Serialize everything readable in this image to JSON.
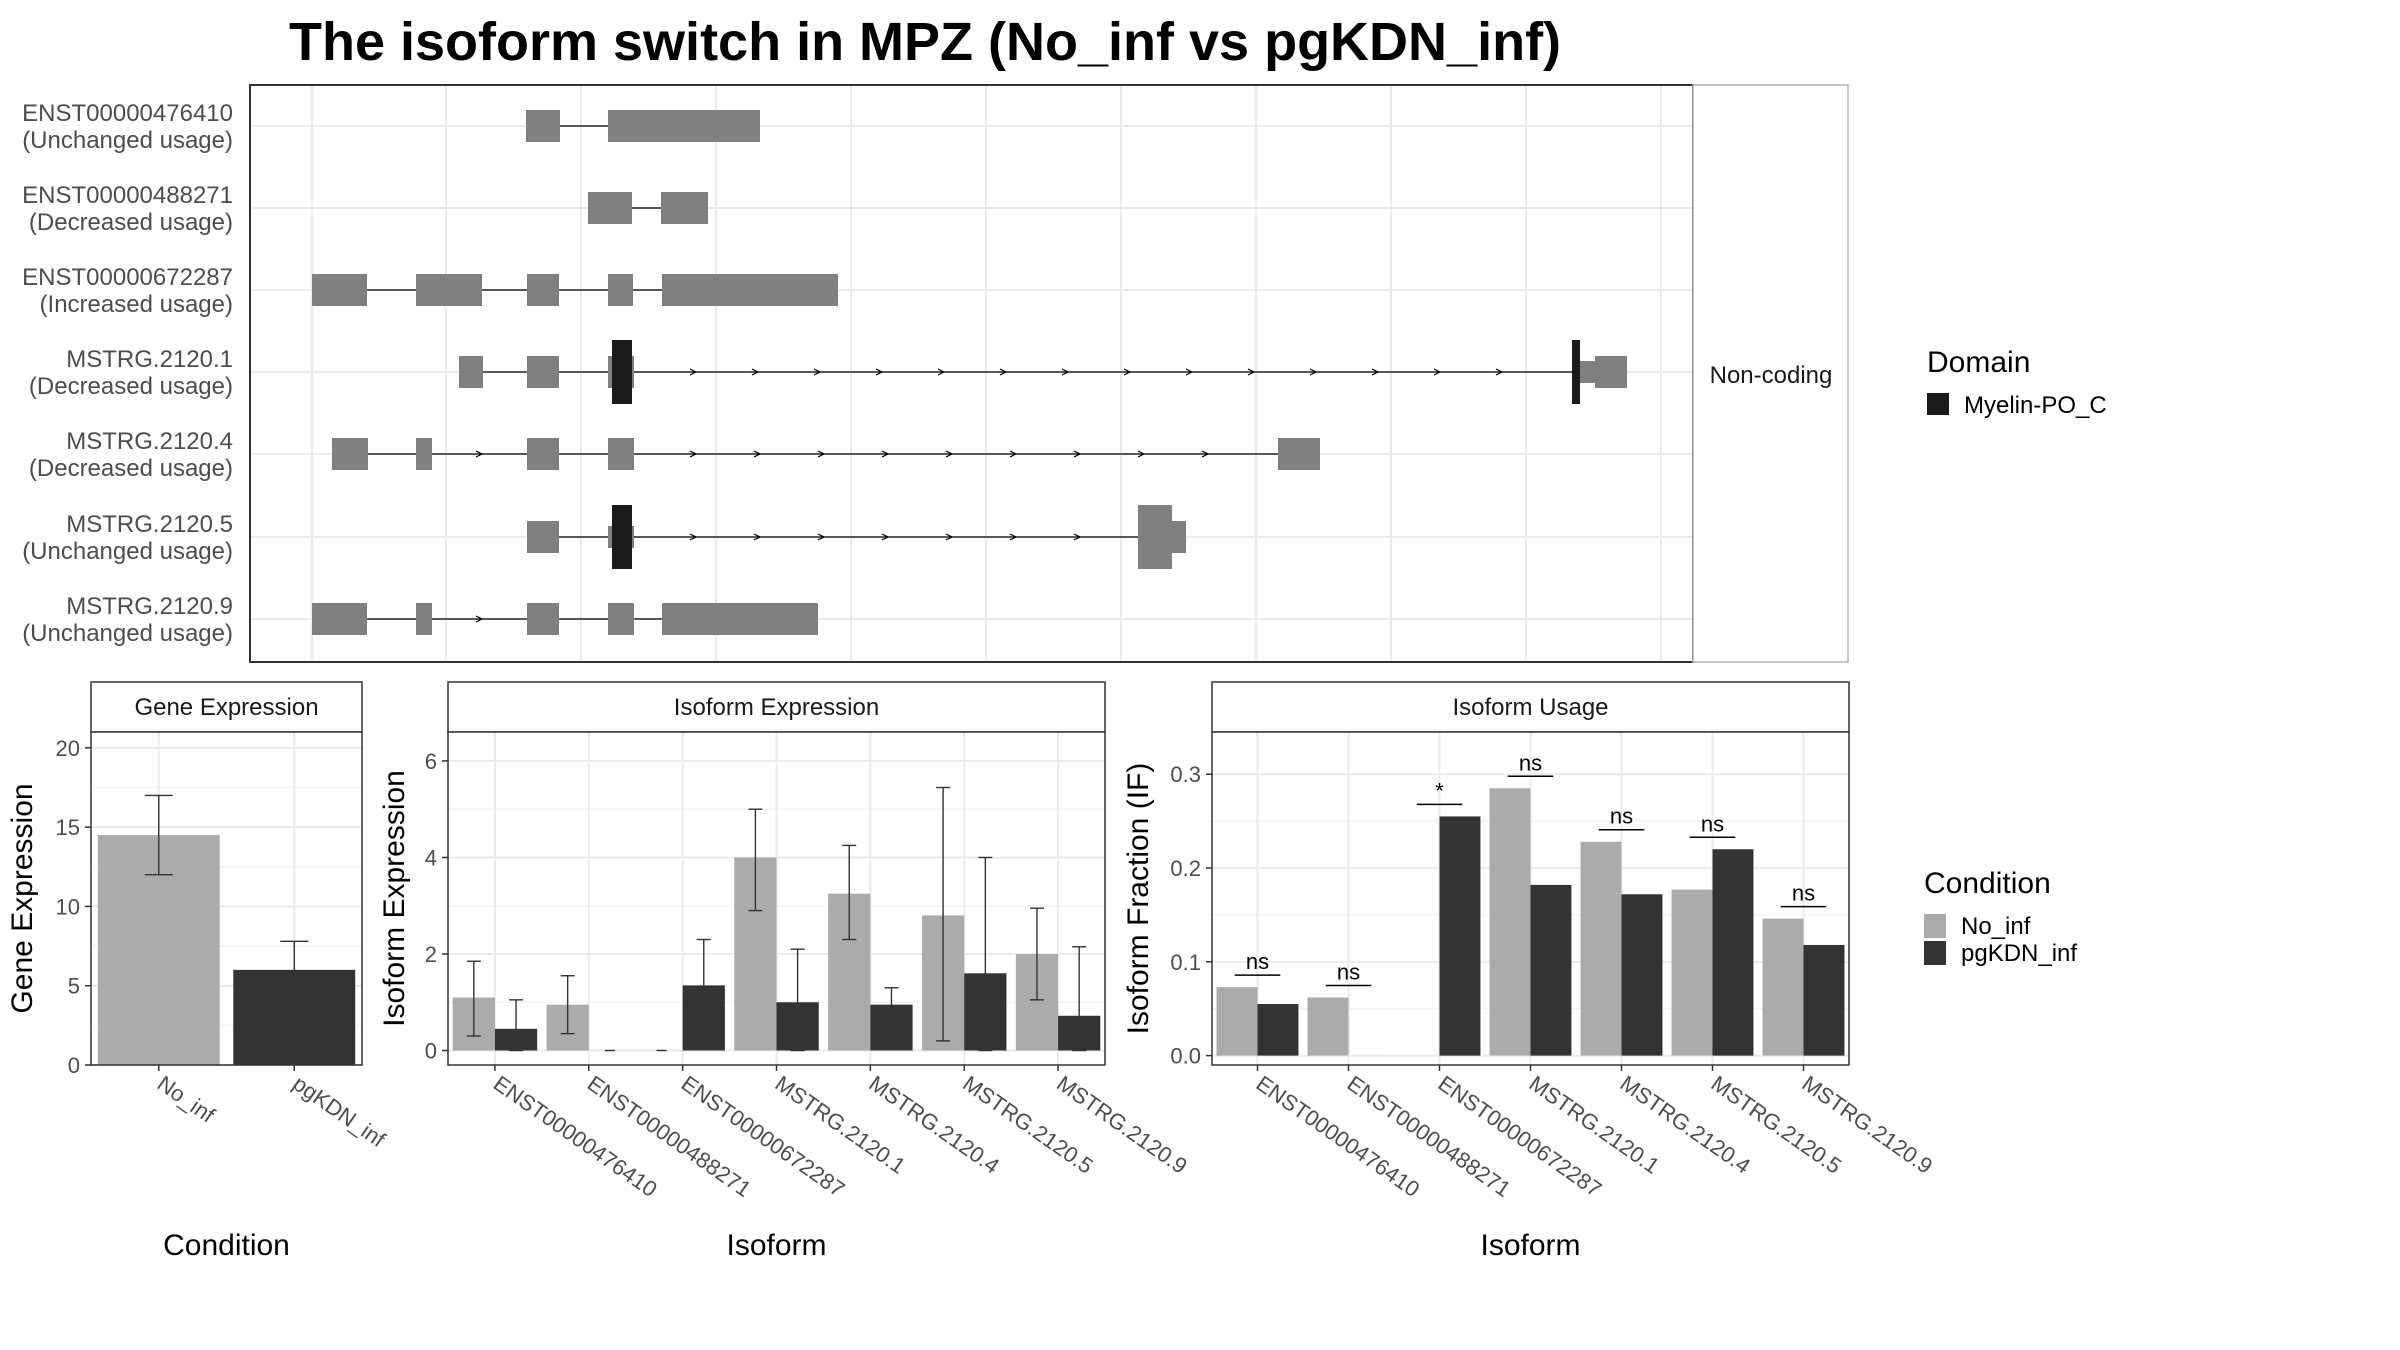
{
  "title": "The isoform switch in MPZ (No_inf vs pgKDN_inf)",
  "colors": {
    "no_inf": "#ababab",
    "pgkdn_inf": "#333333",
    "exon": "#808080",
    "domain": "#1a1a1a",
    "strip_bg": "#ffffff",
    "grid": "#ebebeb"
  },
  "transcript_panel": {
    "strip_label": "Non-coding",
    "isoforms": [
      {
        "id": "ENST00000476410",
        "status": "(Unchanged usage)"
      },
      {
        "id": "ENST00000488271",
        "status": "(Decreased usage)"
      },
      {
        "id": "ENST00000672287",
        "status": "(Increased usage)"
      },
      {
        "id": "MSTRG.2120.1",
        "status": "(Decreased usage)"
      },
      {
        "id": "MSTRG.2120.4",
        "status": "(Decreased usage)"
      },
      {
        "id": "MSTRG.2120.5",
        "status": "(Unchanged usage)"
      },
      {
        "id": "MSTRG.2120.9",
        "status": "(Unchanged usage)"
      }
    ]
  },
  "legend_domain": {
    "title": "Domain",
    "items": [
      {
        "label": "Myelin-PO_C",
        "color": "#1a1a1a"
      }
    ]
  },
  "legend_condition": {
    "title": "Condition",
    "items": [
      {
        "label": "No_inf",
        "color": "#ababab"
      },
      {
        "label": "pgKDN_inf",
        "color": "#333333"
      }
    ]
  },
  "chart_data": [
    {
      "type": "bar",
      "title": "Gene Expression",
      "xlabel": "Condition",
      "ylabel": "Gene Expression",
      "categories": [
        "No_inf",
        "pgKDN_inf"
      ],
      "values": [
        14.5,
        6.0
      ],
      "error_low": [
        12.0,
        4.3
      ],
      "error_high": [
        17.0,
        7.8
      ],
      "ylim": [
        0,
        21
      ],
      "yticks": [
        0,
        5,
        10,
        15,
        20
      ],
      "grid": true
    },
    {
      "type": "bar",
      "title": "Isoform Expression",
      "xlabel": "Isoform",
      "ylabel": "Isoform Expression",
      "categories": [
        "ENST00000476410",
        "ENST00000488271",
        "ENST00000672287",
        "MSTRG.2120.1",
        "MSTRG.2120.4",
        "MSTRG.2120.5",
        "MSTRG.2120.9"
      ],
      "series": [
        {
          "name": "No_inf",
          "values": [
            1.1,
            0.95,
            0.0,
            4.0,
            3.25,
            2.8,
            2.0
          ],
          "error_low": [
            0.3,
            0.35,
            0.0,
            2.9,
            2.3,
            0.2,
            1.05
          ],
          "error_high": [
            1.85,
            1.55,
            0.0,
            5.0,
            4.25,
            5.45,
            2.95
          ]
        },
        {
          "name": "pgKDN_inf",
          "values": [
            0.45,
            0.0,
            1.35,
            1.0,
            0.95,
            1.6,
            0.72
          ],
          "error_low": [
            0.0,
            0.0,
            0.35,
            0.0,
            0.6,
            0.0,
            0.0
          ],
          "error_high": [
            1.05,
            0.0,
            2.3,
            2.1,
            1.3,
            4.0,
            2.15
          ]
        }
      ],
      "ylim": [
        -0.3,
        6.6
      ],
      "yticks": [
        0,
        2,
        4,
        6
      ],
      "grid": true
    },
    {
      "type": "bar",
      "title": "Isoform Usage",
      "xlabel": "Isoform",
      "ylabel": "Isoform Fraction (IF)",
      "categories": [
        "ENST00000476410",
        "ENST00000488271",
        "ENST00000672287",
        "MSTRG.2120.1",
        "MSTRG.2120.4",
        "MSTRG.2120.5",
        "MSTRG.2120.9"
      ],
      "series": [
        {
          "name": "No_inf",
          "values": [
            0.073,
            0.062,
            0.0,
            0.285,
            0.228,
            0.177,
            0.146
          ]
        },
        {
          "name": "pgKDN_inf",
          "values": [
            0.055,
            0.0,
            0.255,
            0.182,
            0.172,
            0.22,
            0.118
          ]
        }
      ],
      "significance": [
        "ns",
        "ns",
        "*",
        "ns",
        "ns",
        "ns",
        "ns"
      ],
      "ylim": [
        -0.01,
        0.345
      ],
      "yticks": [
        0.0,
        0.1,
        0.2,
        0.3
      ],
      "grid": true
    }
  ]
}
